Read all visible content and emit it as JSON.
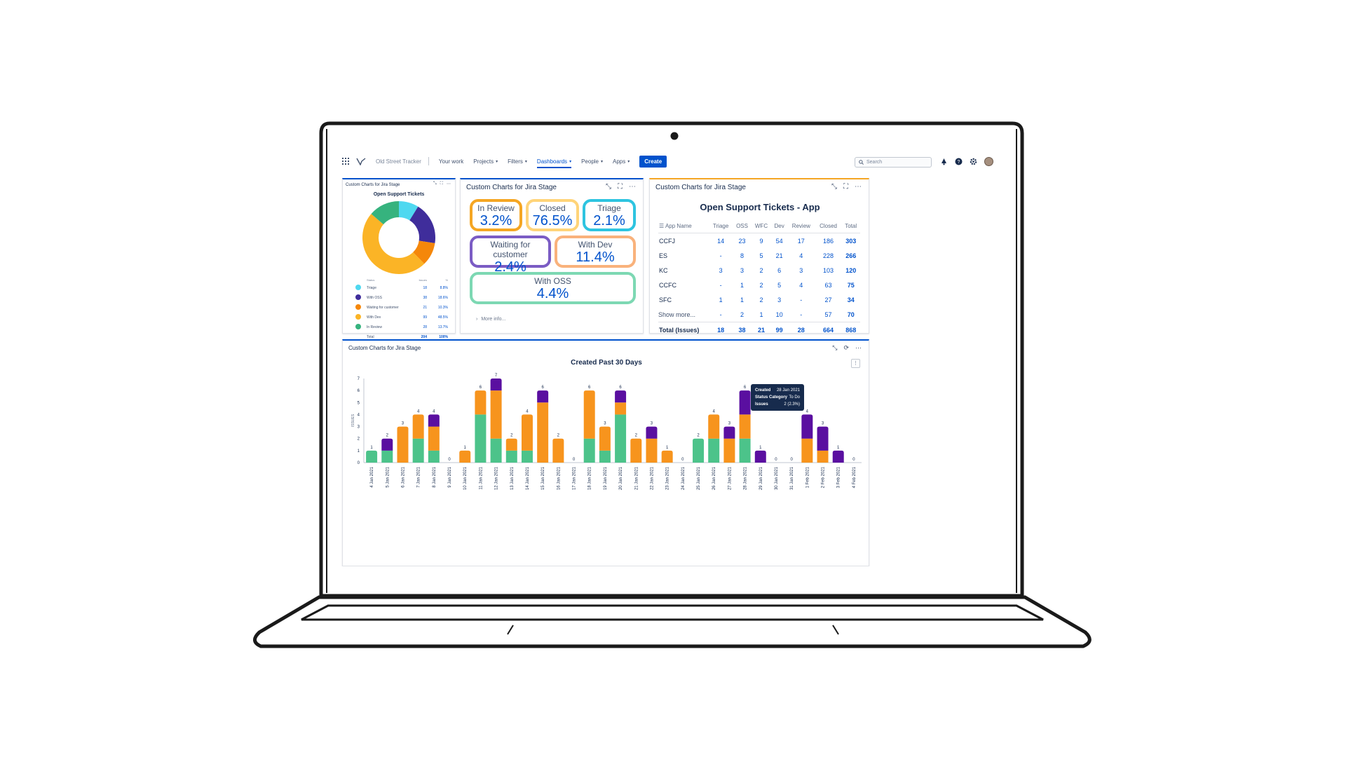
{
  "nav": {
    "project": "Old Street Tracker",
    "items": [
      {
        "label": "Your work",
        "caret": false,
        "active": false
      },
      {
        "label": "Projects",
        "caret": true,
        "active": false
      },
      {
        "label": "Filters",
        "caret": true,
        "active": false
      },
      {
        "label": "Dashboards",
        "caret": true,
        "active": true
      },
      {
        "label": "People",
        "caret": true,
        "active": false
      },
      {
        "label": "Apps",
        "caret": true,
        "active": false
      }
    ],
    "create_label": "Create",
    "search_placeholder": "Search"
  },
  "donut_panel": {
    "header": "Custom Charts for Jira Stage",
    "title": "Open Support Tickets",
    "columns": [
      "Status",
      "Issues",
      "%"
    ],
    "rows": [
      {
        "label": "Triage",
        "count": "18",
        "pct": "8.8%",
        "color": "#4fd8f0"
      },
      {
        "label": "With OSS",
        "count": "38",
        "pct": "18.6%",
        "color": "#3f2d9b"
      },
      {
        "label": "Waiting for customer",
        "count": "21",
        "pct": "10.3%",
        "color": "#f5870a"
      },
      {
        "label": "With Dev",
        "count": "99",
        "pct": "48.5%",
        "color": "#fbb426"
      },
      {
        "label": "In Review",
        "count": "28",
        "pct": "13.7%",
        "color": "#36b37e"
      }
    ],
    "total": {
      "label": "Total",
      "count": "204",
      "pct": "100%"
    }
  },
  "status_panel": {
    "header": "Custom Charts for Jira Stage",
    "pills": [
      {
        "label": "In Review",
        "value": "3.2%",
        "color": "#f5a623"
      },
      {
        "label": "Closed",
        "value": "76.5%",
        "color": "#ffd479"
      },
      {
        "label": "Triage",
        "value": "2.1%",
        "color": "#2ec4e0"
      },
      {
        "label": "Waiting for customer",
        "value": "2.4%",
        "color": "#7b5cc4"
      },
      {
        "label": "With Dev",
        "value": "11.4%",
        "color": "#f9b27c"
      },
      {
        "label": "With OSS",
        "value": "4.4%",
        "color": "#7dd8b3"
      }
    ],
    "more_info": "More info..."
  },
  "table_panel": {
    "header": "Custom Charts for Jira Stage",
    "title": "Open Support Tickets - App",
    "columns": [
      "App Name",
      "Triage",
      "OSS",
      "WFC",
      "Dev",
      "Review",
      "Closed",
      "Total"
    ],
    "rows": [
      [
        "CCFJ",
        "14",
        "23",
        "9",
        "54",
        "17",
        "186",
        "303"
      ],
      [
        "ES",
        "-",
        "8",
        "5",
        "21",
        "4",
        "228",
        "266"
      ],
      [
        "KC",
        "3",
        "3",
        "2",
        "6",
        "3",
        "103",
        "120"
      ],
      [
        "CCFC",
        "-",
        "1",
        "2",
        "5",
        "4",
        "63",
        "75"
      ],
      [
        "SFC",
        "1",
        "1",
        "2",
        "3",
        "-",
        "27",
        "34"
      ],
      [
        "Show more...",
        "-",
        "2",
        "1",
        "10",
        "-",
        "57",
        "70"
      ]
    ],
    "total": [
      "Total (Issues)",
      "18",
      "38",
      "21",
      "99",
      "28",
      "664",
      "868"
    ]
  },
  "bar_panel": {
    "header": "Custom Charts for Jira Stage",
    "tooltip": {
      "rows": [
        {
          "k": "Created",
          "v": "28 Jan 2021"
        },
        {
          "k": "Status Category",
          "v": "To Do"
        },
        {
          "k": "Issues",
          "v": "2 (2.3%)"
        }
      ]
    }
  },
  "chart_data": {
    "type": "bar",
    "title": "Created Past 30 Days",
    "ylabel": "ISSUES",
    "xlabel": "",
    "ylim": [
      0,
      7
    ],
    "yticks": [
      0,
      1,
      2,
      3,
      4,
      5,
      6,
      7
    ],
    "categories": [
      "4 Jan 2021",
      "5 Jan 2021",
      "6 Jan 2021",
      "7 Jan 2021",
      "8 Jan 2021",
      "9 Jan 2021",
      "10 Jan 2021",
      "11 Jan 2021",
      "12 Jan 2021",
      "13 Jan 2021",
      "14 Jan 2021",
      "15 Jan 2021",
      "16 Jan 2021",
      "17 Jan 2021",
      "18 Jan 2021",
      "19 Jan 2021",
      "20 Jan 2021",
      "21 Jan 2021",
      "22 Jan 2021",
      "23 Jan 2021",
      "24 Jan 2021",
      "25 Jan 2021",
      "26 Jan 2021",
      "27 Jan 2021",
      "28 Jan 2021",
      "29 Jan 2021",
      "30 Jan 2021",
      "31 Jan 2021",
      "1 Feb 2021",
      "2 Feb 2021",
      "3 Feb 2021",
      "4 Feb 2021"
    ],
    "series": [
      {
        "color": "#4cc38a",
        "values": [
          1,
          1,
          0,
          2,
          1,
          0,
          0,
          4,
          2,
          1,
          1,
          0,
          0,
          0,
          2,
          1,
          4,
          0,
          0,
          0,
          0,
          2,
          2,
          0,
          2,
          0,
          0,
          0,
          0,
          0,
          0,
          0
        ]
      },
      {
        "color": "#f7941d",
        "values": [
          0,
          0,
          3,
          2,
          2,
          0,
          1,
          2,
          4,
          1,
          3,
          5,
          2,
          0,
          4,
          2,
          1,
          2,
          2,
          1,
          0,
          0,
          2,
          2,
          2,
          0,
          0,
          0,
          2,
          1,
          0,
          0
        ]
      },
      {
        "color": "#5a0fa0",
        "values": [
          0,
          1,
          0,
          0,
          1,
          0,
          0,
          0,
          1,
          0,
          0,
          1,
          0,
          0,
          0,
          0,
          1,
          0,
          1,
          0,
          0,
          0,
          0,
          1,
          2,
          1,
          0,
          0,
          2,
          2,
          1,
          0
        ]
      }
    ],
    "totals": [
      1,
      2,
      3,
      4,
      4,
      0,
      1,
      6,
      7,
      2,
      4,
      6,
      2,
      0,
      6,
      3,
      6,
      2,
      3,
      1,
      0,
      2,
      4,
      3,
      6,
      1,
      0,
      0,
      4,
      3,
      1,
      0
    ]
  }
}
